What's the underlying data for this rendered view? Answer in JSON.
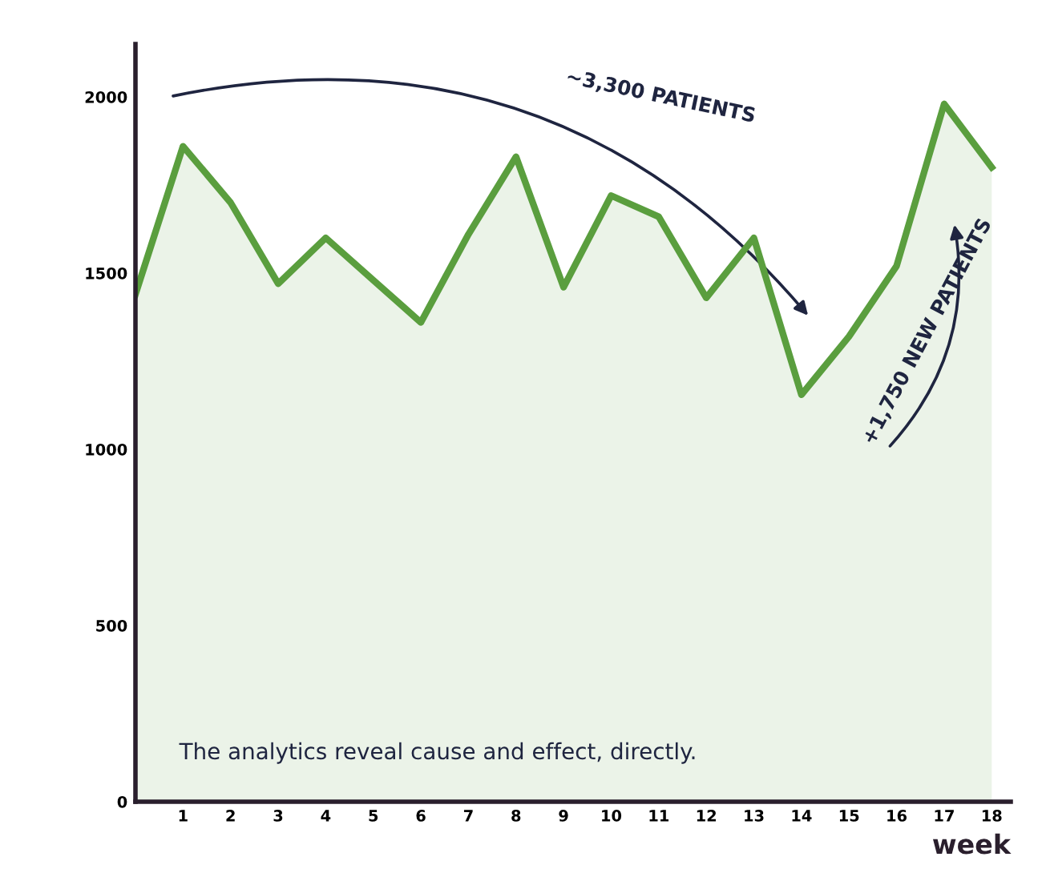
{
  "chart_data": {
    "type": "area",
    "xlabel": "week",
    "x": [
      0,
      1,
      2,
      3,
      4,
      5,
      6,
      7,
      8,
      9,
      10,
      11,
      12,
      13,
      14,
      15,
      16,
      17,
      18
    ],
    "series": [
      {
        "color": "#5a9e3e",
        "values": [
          1440,
          1860,
          1700,
          1470,
          1600,
          1480,
          1360,
          1610,
          1830,
          1460,
          1720,
          1660,
          1430,
          1600,
          1155,
          1320,
          1520,
          1980,
          1800
        ]
      }
    ],
    "xlim": [
      0,
      18.4
    ],
    "xticks": [
      1,
      2,
      3,
      4,
      5,
      6,
      7,
      8,
      9,
      10,
      11,
      12,
      13,
      14,
      15,
      16,
      17,
      18
    ],
    "ylim": [
      0,
      2150
    ],
    "yticks": [
      0,
      500,
      1000,
      1500,
      2000
    ],
    "grid": false,
    "legend": false,
    "annotations": [
      "~3,300 PATIENTS",
      "+1,750 NEW PATIENTS",
      "The analytics reveal cause and effect, directly."
    ]
  }
}
